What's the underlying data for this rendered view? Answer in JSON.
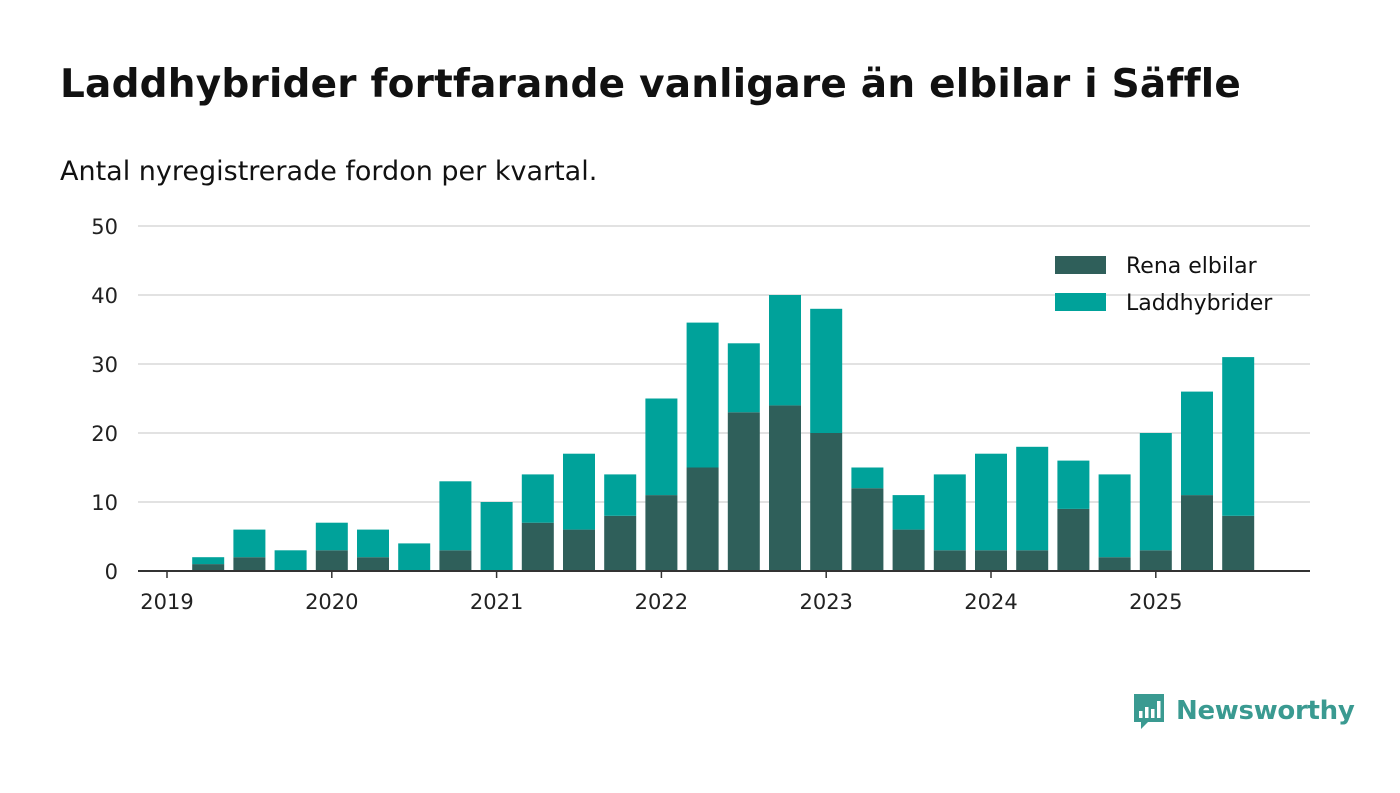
{
  "title": "Laddhybrider fortfarande vanligare än elbilar i Säffle",
  "subtitle": "Antal nyregistrerade fordon per kvartal.",
  "brand": {
    "name": "Newsworthy",
    "icon": "newsworthy-logo-icon"
  },
  "colors": {
    "series1": "#2f5f5a",
    "series2": "#00a29a",
    "grid": "#d9d9d9",
    "axis": "#333333",
    "brand": "#3a9a91"
  },
  "chart_data": {
    "type": "bar",
    "stacked": true,
    "x": [
      "2019 Q1",
      "2019 Q2",
      "2019 Q3",
      "2019 Q4",
      "2020 Q1",
      "2020 Q2",
      "2020 Q3",
      "2020 Q4",
      "2021 Q1",
      "2021 Q2",
      "2021 Q3",
      "2021 Q4",
      "2022 Q1",
      "2022 Q2",
      "2022 Q3",
      "2022 Q4",
      "2023 Q1",
      "2023 Q2",
      "2023 Q3",
      "2023 Q4",
      "2024 Q1",
      "2024 Q2",
      "2024 Q3",
      "2024 Q4",
      "2025 Q1",
      "2025 Q2",
      "2025 Q3"
    ],
    "x_tick_labels": [
      "2019",
      "2020",
      "2021",
      "2022",
      "2023",
      "2024",
      "2025"
    ],
    "series": [
      {
        "name": "Rena elbilar",
        "values": [
          0,
          1,
          2,
          0,
          3,
          2,
          0,
          3,
          0,
          7,
          6,
          8,
          11,
          15,
          23,
          24,
          20,
          12,
          6,
          3,
          3,
          3,
          9,
          2,
          3,
          11,
          8
        ]
      },
      {
        "name": "Laddhybrider",
        "values": [
          0,
          1,
          4,
          3,
          4,
          4,
          4,
          10,
          10,
          7,
          11,
          6,
          14,
          21,
          10,
          16,
          18,
          3,
          5,
          11,
          14,
          15,
          7,
          12,
          17,
          15,
          23
        ]
      }
    ],
    "ylim": [
      0,
      50
    ],
    "yticks": [
      0,
      10,
      20,
      30,
      40,
      50
    ],
    "grid": true,
    "legend_position": "top-right"
  }
}
